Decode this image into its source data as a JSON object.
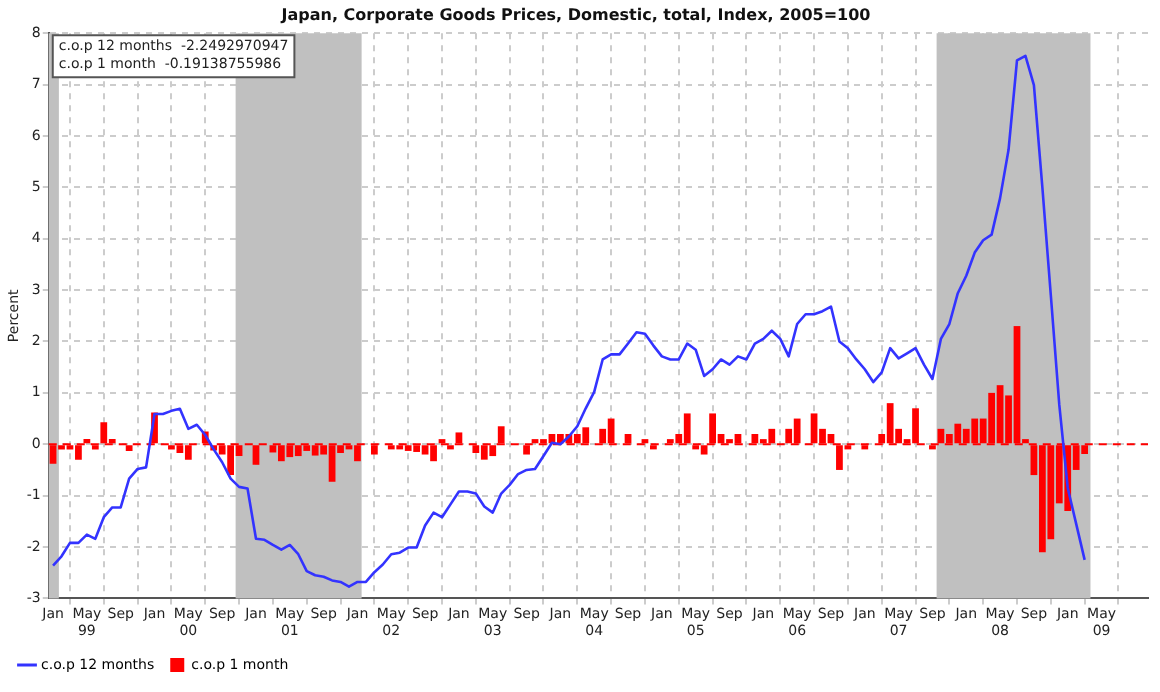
{
  "chart_data": {
    "type": "line",
    "title": "Japan, Corporate Goods Prices, Domestic, total, Index, 2005=100",
    "ylabel": "Percent",
    "x": [
      "1999-01",
      "1999-02",
      "1999-03",
      "1999-04",
      "1999-05",
      "1999-06",
      "1999-07",
      "1999-08",
      "1999-09",
      "1999-10",
      "1999-11",
      "1999-12",
      "2000-01",
      "2000-02",
      "2000-03",
      "2000-04",
      "2000-05",
      "2000-06",
      "2000-07",
      "2000-08",
      "2000-09",
      "2000-10",
      "2000-11",
      "2000-12",
      "2001-01",
      "2001-02",
      "2001-03",
      "2001-04",
      "2001-05",
      "2001-06",
      "2001-07",
      "2001-08",
      "2001-09",
      "2001-10",
      "2001-11",
      "2001-12",
      "2002-01",
      "2002-02",
      "2002-03",
      "2002-04",
      "2002-05",
      "2002-06",
      "2002-07",
      "2002-08",
      "2002-09",
      "2002-10",
      "2002-11",
      "2002-12",
      "2003-01",
      "2003-02",
      "2003-03",
      "2003-04",
      "2003-05",
      "2003-06",
      "2003-07",
      "2003-08",
      "2003-09",
      "2003-10",
      "2003-11",
      "2003-12",
      "2004-01",
      "2004-02",
      "2004-03",
      "2004-04",
      "2004-05",
      "2004-06",
      "2004-07",
      "2004-08",
      "2004-09",
      "2004-10",
      "2004-11",
      "2004-12",
      "2005-01",
      "2005-02",
      "2005-03",
      "2005-04",
      "2005-05",
      "2005-06",
      "2005-07",
      "2005-08",
      "2005-09",
      "2005-10",
      "2005-11",
      "2005-12",
      "2006-01",
      "2006-02",
      "2006-03",
      "2006-04",
      "2006-05",
      "2006-06",
      "2006-07",
      "2006-08",
      "2006-09",
      "2006-10",
      "2006-11",
      "2006-12",
      "2007-01",
      "2007-02",
      "2007-03",
      "2007-04",
      "2007-05",
      "2007-06",
      "2007-07",
      "2007-08",
      "2007-09",
      "2007-10",
      "2007-11",
      "2007-12",
      "2008-01",
      "2008-02",
      "2008-03",
      "2008-04",
      "2008-05",
      "2008-06",
      "2008-07",
      "2008-08",
      "2008-09",
      "2008-10",
      "2008-11",
      "2008-12",
      "2009-01",
      "2009-02",
      "2009-03"
    ],
    "series": [
      {
        "type": "bar",
        "name": "c.o.p 1 month",
        "color": "#ff0000",
        "values": [
          -0.38,
          -0.1,
          -0.1,
          -0.3,
          0.1,
          -0.1,
          0.43,
          0.1,
          0,
          -0.13,
          0,
          0,
          0.62,
          0,
          -0.1,
          -0.17,
          -0.3,
          0,
          0.25,
          -0.12,
          -0.2,
          -0.6,
          -0.23,
          0,
          -0.4,
          0,
          -0.16,
          -0.33,
          -0.25,
          -0.23,
          -0.13,
          -0.22,
          -0.2,
          -0.73,
          -0.17,
          -0.1,
          -0.33,
          0,
          -0.2,
          0,
          -0.1,
          -0.1,
          -0.13,
          -0.15,
          -0.2,
          -0.33,
          0.1,
          -0.1,
          0.23,
          0,
          -0.17,
          -0.3,
          -0.23,
          0.35,
          0,
          0,
          -0.2,
          0.1,
          0.1,
          0.2,
          0.2,
          0.2,
          0.2,
          0.33,
          0,
          0.3,
          0.5,
          0,
          0.2,
          0,
          0.1,
          -0.1,
          0,
          0.1,
          0.2,
          0.6,
          -0.1,
          -0.2,
          0.6,
          0.2,
          0.1,
          0.2,
          0,
          0.2,
          0.1,
          0.3,
          0,
          0.3,
          0.5,
          0,
          0.6,
          0.3,
          0.2,
          -0.5,
          -0.1,
          0,
          -0.1,
          0,
          0.2,
          0.8,
          0.3,
          0.1,
          0.7,
          0,
          -0.1,
          0.3,
          0.2,
          0.4,
          0.3,
          0.5,
          0.5,
          1.0,
          1.15,
          0.95,
          2.3,
          0.1,
          -0.6,
          -2.1,
          -1.85,
          -1.15,
          -1.3,
          -0.5,
          -0.19
        ]
      },
      {
        "name": "c.o.p 12 months",
        "color": "#3333ff",
        "values": [
          -2.36,
          -2.18,
          -1.92,
          -1.92,
          -1.76,
          -1.84,
          -1.42,
          -1.23,
          -1.23,
          -0.67,
          -0.48,
          -0.45,
          0.59,
          0.59,
          0.65,
          0.69,
          0.3,
          0.38,
          0.18,
          -0.1,
          -0.35,
          -0.67,
          -0.83,
          -0.86,
          -1.84,
          -1.86,
          -1.96,
          -2.05,
          -1.96,
          -2.14,
          -2.47,
          -2.55,
          -2.58,
          -2.65,
          -2.68,
          -2.77,
          -2.68,
          -2.68,
          -2.49,
          -2.34,
          -2.14,
          -2.11,
          -2.01,
          -2.01,
          -1.58,
          -1.33,
          -1.42,
          -1.17,
          -0.92,
          -0.92,
          -0.96,
          -1.21,
          -1.33,
          -0.96,
          -0.79,
          -0.58,
          -0.5,
          -0.48,
          -0.23,
          0.03,
          0.0,
          0.15,
          0.35,
          0.7,
          1.02,
          1.65,
          1.75,
          1.75,
          1.96,
          2.18,
          2.15,
          1.92,
          1.71,
          1.65,
          1.65,
          1.96,
          1.84,
          1.33,
          1.46,
          1.65,
          1.55,
          1.71,
          1.65,
          1.96,
          2.05,
          2.21,
          2.05,
          1.71,
          2.34,
          2.53,
          2.53,
          2.59,
          2.68,
          2.0,
          1.87,
          1.65,
          1.46,
          1.21,
          1.4,
          1.87,
          1.67,
          1.77,
          1.87,
          1.55,
          1.27,
          2.05,
          2.34,
          2.94,
          3.28,
          3.73,
          3.97,
          4.08,
          4.79,
          5.73,
          7.47,
          7.56,
          6.99,
          5.0,
          2.9,
          0.77,
          -0.85,
          -1.55,
          -2.25
        ]
      }
    ],
    "xlim": [
      "1998-12-16",
      "2009-10-16"
    ],
    "xticks": [
      {
        "value": "1999-01",
        "label": "Jan"
      },
      {
        "value": "1999-05",
        "label": "May\n99"
      },
      {
        "value": "1999-09",
        "label": "Sep"
      },
      {
        "value": "2000-01",
        "label": "Jan"
      },
      {
        "value": "2000-05",
        "label": "May\n00"
      },
      {
        "value": "2000-09",
        "label": "Sep"
      },
      {
        "value": "2001-01",
        "label": "Jan"
      },
      {
        "value": "2001-05",
        "label": "May\n01"
      },
      {
        "value": "2001-09",
        "label": "Sep"
      },
      {
        "value": "2002-01",
        "label": "Jan"
      },
      {
        "value": "2002-05",
        "label": "May\n02"
      },
      {
        "value": "2002-09",
        "label": "Sep"
      },
      {
        "value": "2003-01",
        "label": "Jan"
      },
      {
        "value": "2003-05",
        "label": "May\n03"
      },
      {
        "value": "2003-09",
        "label": "Sep"
      },
      {
        "value": "2004-01",
        "label": "Jan"
      },
      {
        "value": "2004-05",
        "label": "May\n04"
      },
      {
        "value": "2004-09",
        "label": "Sep"
      },
      {
        "value": "2005-01",
        "label": "Jan"
      },
      {
        "value": "2005-05",
        "label": "May\n05"
      },
      {
        "value": "2005-09",
        "label": "Sep"
      },
      {
        "value": "2006-01",
        "label": "Jan"
      },
      {
        "value": "2006-05",
        "label": "May\n06"
      },
      {
        "value": "2006-09",
        "label": "Sep"
      },
      {
        "value": "2007-01",
        "label": "Jan"
      },
      {
        "value": "2007-05",
        "label": "May\n07"
      },
      {
        "value": "2007-09",
        "label": "Sep"
      },
      {
        "value": "2008-01",
        "label": "Jan"
      },
      {
        "value": "2008-05",
        "label": "May\n08"
      },
      {
        "value": "2008-09",
        "label": "Sep"
      },
      {
        "value": "2009-01",
        "label": "Jan"
      },
      {
        "value": "2009-05",
        "label": "May\n09"
      }
    ],
    "ylim": [
      -3,
      8
    ],
    "yticks": [
      -3,
      -2,
      -1,
      0,
      1,
      2,
      3,
      4,
      5,
      6,
      7,
      8
    ],
    "bands": [
      {
        "axis": "x",
        "from": "1998-12-16",
        "to": "1999-01-22",
        "color": "#c0c0c0"
      },
      {
        "axis": "x",
        "from": "2000-10-19",
        "to": "2002-01-16",
        "color": "#c0c0c0"
      },
      {
        "axis": "x",
        "from": "2007-09-16",
        "to": "2009-03-22",
        "color": "#c0c0c0"
      }
    ],
    "ref_lines": [
      {
        "axis": "y",
        "value": 0,
        "color": "#ff0000",
        "line_style": "dashed"
      }
    ],
    "annotations": [
      "c.o.p 12 months  -2.2492970947",
      "c.o.p 1 month  -0.19138755986"
    ],
    "grid": true,
    "legend": "bottom left",
    "marker": "none",
    "line_style": "solid"
  }
}
